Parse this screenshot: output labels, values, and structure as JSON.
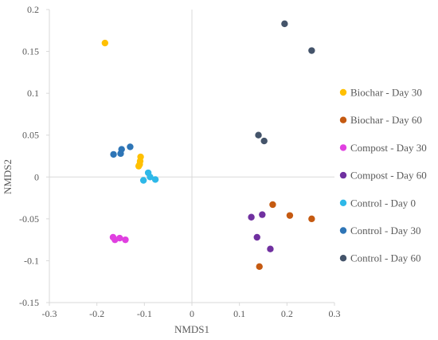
{
  "chart_data": {
    "type": "scatter",
    "title": "",
    "xlabel": "NMDS1",
    "ylabel": "NMDS2",
    "xlim": [
      -0.3,
      0.3
    ],
    "ylim": [
      -0.15,
      0.2
    ],
    "x_ticks": [
      -0.3,
      -0.2,
      -0.1,
      0,
      0.1,
      0.2,
      0.3
    ],
    "x_tick_labels": [
      "-0.3",
      "-0.2",
      "-0.1",
      "0",
      "0.1",
      "0.2",
      "0.3"
    ],
    "y_ticks": [
      0.2,
      0.15,
      0.1,
      0.05,
      0,
      -0.05,
      -0.1,
      -0.15
    ],
    "y_tick_labels": [
      "0.2",
      "0.15",
      "0.1",
      "0.05",
      "0",
      "-0.05",
      "-0.1",
      "-0.15"
    ],
    "grid": false,
    "legend_position": "right",
    "series": [
      {
        "name": "Biochar - Day 30",
        "color": "#FFC000",
        "points": [
          [
            -0.183,
            0.16
          ],
          [
            -0.108,
            0.024
          ],
          [
            -0.109,
            0.019
          ],
          [
            -0.11,
            0.015
          ],
          [
            -0.112,
            0.013
          ]
        ]
      },
      {
        "name": "Biochar - Day 60",
        "color": "#C55A11",
        "points": [
          [
            0.17,
            -0.033
          ],
          [
            0.206,
            -0.046
          ],
          [
            0.252,
            -0.05
          ],
          [
            0.142,
            -0.107
          ]
        ]
      },
      {
        "name": "Compost - Day 30",
        "color": "#E040E0",
        "points": [
          [
            -0.166,
            -0.072
          ],
          [
            -0.162,
            -0.075
          ],
          [
            -0.152,
            -0.073
          ],
          [
            -0.14,
            -0.075
          ]
        ]
      },
      {
        "name": "Compost - Day 60",
        "color": "#7030A0",
        "points": [
          [
            0.125,
            -0.048
          ],
          [
            0.148,
            -0.045
          ],
          [
            0.137,
            -0.072
          ],
          [
            0.165,
            -0.086
          ]
        ]
      },
      {
        "name": "Control - Day 0",
        "color": "#2EB8E8",
        "points": [
          [
            -0.092,
            0.005
          ],
          [
            -0.088,
            0.0
          ],
          [
            -0.102,
            -0.004
          ],
          [
            -0.077,
            -0.003
          ]
        ]
      },
      {
        "name": "Control - Day 30",
        "color": "#2E75B6",
        "points": [
          [
            -0.165,
            0.027
          ],
          [
            -0.148,
            0.033
          ],
          [
            -0.15,
            0.028
          ],
          [
            -0.13,
            0.036
          ]
        ]
      },
      {
        "name": "Control - Day 60",
        "color": "#44546A",
        "points": [
          [
            0.195,
            0.183
          ],
          [
            0.252,
            0.151
          ],
          [
            0.14,
            0.05
          ],
          [
            0.152,
            0.043
          ]
        ]
      }
    ]
  }
}
